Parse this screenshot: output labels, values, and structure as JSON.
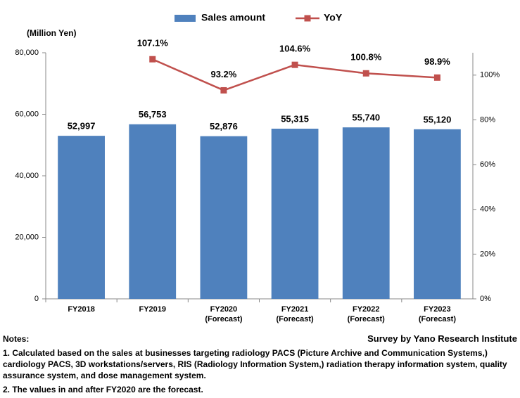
{
  "chart_data": {
    "type": "bar",
    "unit_label": "(Million Yen)",
    "categories": [
      "FY2018",
      "FY2019",
      "FY2020\n(Forecast)",
      "FY2021\n(Forecast)",
      "FY2022\n(Forecast)",
      "FY2023\n(Forecast)"
    ],
    "series": [
      {
        "name": "Sales amount",
        "type": "bar",
        "color": "#4f81bd",
        "values": [
          52997,
          56753,
          52876,
          55315,
          55740,
          55120
        ],
        "value_labels": [
          "52,997",
          "56,753",
          "52,876",
          "55,315",
          "55,740",
          "55,120"
        ]
      },
      {
        "name": "YoY",
        "type": "line",
        "axis": "y2",
        "color": "#c0504d",
        "values": [
          null,
          107.1,
          93.2,
          104.6,
          100.8,
          98.9
        ],
        "value_labels": [
          null,
          "107.1%",
          "93.2%",
          "104.6%",
          "100.8%",
          "98.9%"
        ]
      }
    ],
    "ylim": [
      0,
      80000
    ],
    "yticks": [
      0,
      {
        "value": 20000,
        "label": "20,000"
      },
      {
        "value": 40000,
        "label": "40,000"
      },
      {
        "value": 60000,
        "label": "60,000"
      },
      {
        "value": 80000,
        "label": "80,000"
      }
    ],
    "y2lim": [
      0,
      110
    ],
    "y2ticks": [
      {
        "value": 0,
        "label": "0%"
      },
      {
        "value": 20,
        "label": "20%"
      },
      {
        "value": 40,
        "label": "40%"
      },
      {
        "value": 60,
        "label": "60%"
      },
      {
        "value": 80,
        "label": "80%"
      },
      {
        "value": 100,
        "label": "100%"
      }
    ],
    "source": "Survey by Yano Research Institute"
  },
  "notes": {
    "title": "Notes:",
    "items": [
      "1. Calculated based on the sales at businesses targeting radiology PACS (Picture Archive and Communication Systems,) cardiology PACS, 3D workstations/servers, RIS (Radiology Information System,) radiation therapy information system, quality assurance system, and dose management system.",
      "2. The values in and after FY2020 are the forecast."
    ]
  }
}
